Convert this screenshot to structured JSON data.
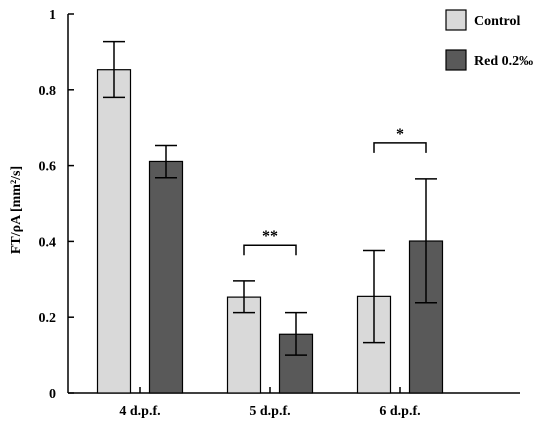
{
  "chart_data": {
    "type": "bar",
    "categories": [
      "4 d.p.f.",
      "5 d.p.f.",
      "6 d.p.f."
    ],
    "series": [
      {
        "name": "Control",
        "color": "#d9d9d9",
        "values": [
          0.853,
          0.253,
          0.255
        ],
        "err_low": [
          0.78,
          0.212,
          0.133
        ],
        "err_high": [
          0.927,
          0.296,
          0.376
        ]
      },
      {
        "name": "Red 0.2‰",
        "color": "#595959",
        "values": [
          0.611,
          0.155,
          0.401
        ],
        "err_low": [
          0.568,
          0.1,
          0.238
        ],
        "err_high": [
          0.653,
          0.212,
          0.565
        ]
      }
    ],
    "ylabel": "FT/ρA [mm²/s]",
    "xlabel": "",
    "ylim": [
      0,
      1
    ],
    "yticks": [
      "0",
      "0.2",
      "0.4",
      "0.6",
      "0.8",
      "1"
    ],
    "ytick_values": [
      0,
      0.2,
      0.4,
      0.6,
      0.8,
      1
    ],
    "significance": [
      {
        "category_index": 1,
        "label": "**",
        "level": 0.39
      },
      {
        "category_index": 2,
        "label": "*",
        "level": 0.66
      }
    ],
    "legend_position": "top-right",
    "grid": false
  }
}
